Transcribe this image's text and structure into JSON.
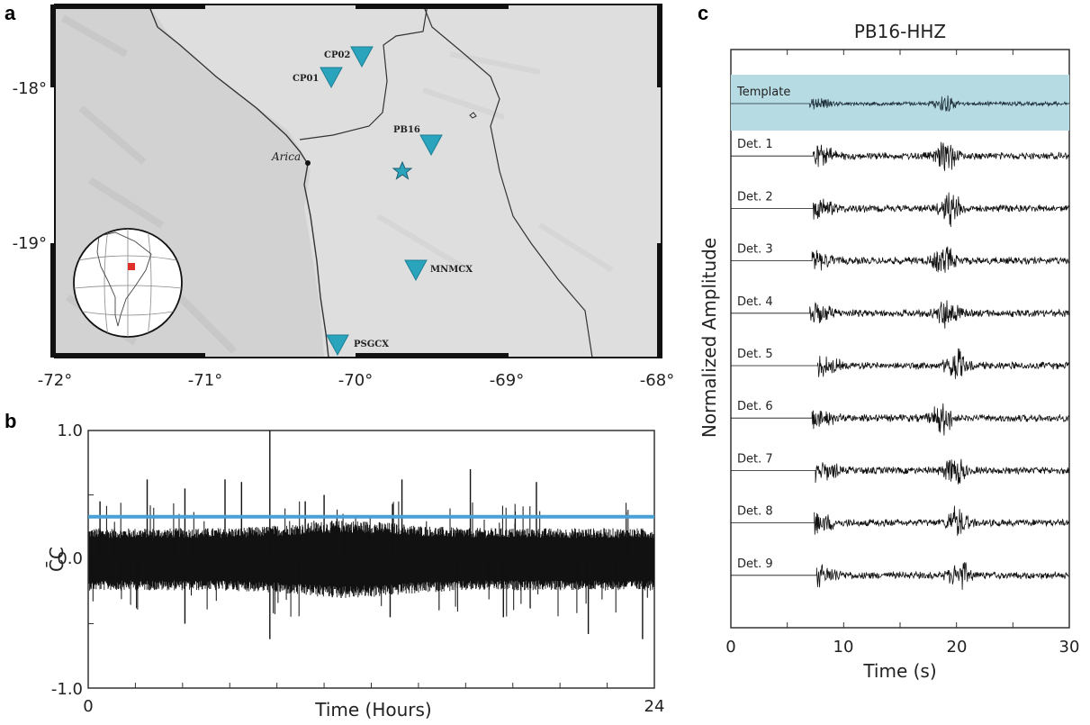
{
  "panels": {
    "a": "a",
    "b": "b",
    "c": "c"
  },
  "map": {
    "lon_ticks": [
      "-72°",
      "-71°",
      "-70°",
      "-69°",
      "-68°"
    ],
    "lat_ticks": [
      "-18°",
      "-19°"
    ],
    "city": "Arica",
    "stations": [
      "CP02",
      "CP01",
      "PB16",
      "MNMCX",
      "PSGCX"
    ],
    "colors": {
      "station": "#2aa3bd",
      "star": "#2aa3bd",
      "inset_marker": "#e0302a",
      "border": "#333333"
    }
  },
  "chart_data": [
    {
      "type": "line",
      "panel": "b",
      "title": "",
      "xlabel": "Time (Hours)",
      "ylabel": "C̄C",
      "xlim": [
        0,
        24
      ],
      "ylim": [
        -1.0,
        1.0
      ],
      "x_ticks": [
        "0",
        "24"
      ],
      "y_ticks": [
        "1.0",
        "0.0",
        "-1.0"
      ],
      "threshold": 0.33,
      "threshold_color": "#4aa0d5",
      "series": [
        {
          "values": {
            "noise_band": [
              -0.22,
              0.22
            ]
          }
        }
      ],
      "spikes": [
        {
          "x": 7.7,
          "y": 1.0
        },
        {
          "x": 7.7,
          "y": -0.62
        },
        {
          "x": 10.0,
          "y": 0.5
        },
        {
          "x": 16.2,
          "y": 0.7
        },
        {
          "x": 19.0,
          "y": 0.6
        },
        {
          "x": 5.8,
          "y": 0.62
        },
        {
          "x": 4.1,
          "y": 0.55
        },
        {
          "x": 6.5,
          "y": 0.6
        },
        {
          "x": 12.9,
          "y": 0.43
        },
        {
          "x": 13.3,
          "y": 0.62
        },
        {
          "x": 2.5,
          "y": 0.62
        },
        {
          "x": 0.5,
          "y": 0.45
        },
        {
          "x": 21.2,
          "y": -0.58
        },
        {
          "x": 23.5,
          "y": -0.62
        },
        {
          "x": 12.8,
          "y": -0.45
        },
        {
          "x": 4.1,
          "y": -0.5
        },
        {
          "x": 17.6,
          "y": -0.45
        },
        {
          "x": 9.2,
          "y": 0.45
        }
      ]
    },
    {
      "type": "line",
      "panel": "c",
      "title": "PB16-HHZ",
      "xlabel": "Time (s)",
      "ylabel": "Normalized Amplitude",
      "xlim": [
        0,
        30
      ],
      "x_ticks": [
        "0",
        "10",
        "20",
        "30"
      ],
      "series": [
        {
          "name": "Template",
          "onset": 7.0,
          "peak": 19.0,
          "highlight": "#b7dbe3"
        },
        {
          "name": "Det. 1",
          "onset": 7.3,
          "peak": 19.1
        },
        {
          "name": "Det. 2",
          "onset": 7.3,
          "peak": 19.5
        },
        {
          "name": "Det. 3",
          "onset": 7.2,
          "peak": 18.9
        },
        {
          "name": "Det. 4",
          "onset": 7.0,
          "peak": 19.2
        },
        {
          "name": "Det. 5",
          "onset": 7.7,
          "peak": 20.0
        },
        {
          "name": "Det. 6",
          "onset": 7.2,
          "peak": 18.7
        },
        {
          "name": "Det. 7",
          "onset": 7.5,
          "peak": 19.8
        },
        {
          "name": "Det. 8",
          "onset": 7.4,
          "peak": 20.1
        },
        {
          "name": "Det. 9",
          "onset": 7.6,
          "peak": 20.3
        }
      ]
    }
  ]
}
